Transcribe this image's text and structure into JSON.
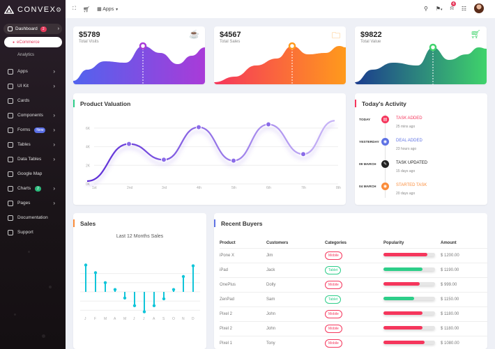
{
  "brand": {
    "name": "CONVEX",
    "settings_icon": "gear-icon"
  },
  "sidebar": {
    "dashboard": {
      "label": "Dashboard",
      "badge": "2"
    },
    "ecommerce": "eCommerce",
    "analytics": "Analytics",
    "items": [
      {
        "label": "Apps",
        "icon": "monitor-icon",
        "arrow": true
      },
      {
        "label": "UI Kit",
        "icon": "layers-icon",
        "arrow": true
      },
      {
        "label": "Cards",
        "icon": "card-icon",
        "arrow": false
      },
      {
        "label": "Components",
        "icon": "puzzle-icon",
        "arrow": true
      },
      {
        "label": "Forms",
        "icon": "form-icon",
        "arrow": true,
        "badge": "New"
      },
      {
        "label": "Tables",
        "icon": "table-icon",
        "arrow": true
      },
      {
        "label": "Data Tables",
        "icon": "datatable-icon",
        "arrow": true
      },
      {
        "label": "Google Map",
        "icon": "map-icon",
        "arrow": false
      },
      {
        "label": "Charts",
        "icon": "chart-icon",
        "arrow": true,
        "badge": "2"
      },
      {
        "label": "Pages",
        "icon": "pages-icon",
        "arrow": true
      },
      {
        "label": "Documentation",
        "icon": "doc-icon",
        "arrow": false
      },
      {
        "label": "Support",
        "icon": "support-icon",
        "arrow": false
      }
    ]
  },
  "topbar": {
    "apps_label": "Apps",
    "notif_count": "4"
  },
  "kpis": [
    {
      "value": "$5789",
      "label": "Total Visits",
      "icon": "cup-icon",
      "c1": "#a93bd8",
      "c2": "#5163ee"
    },
    {
      "value": "$4567",
      "label": "Total Sales",
      "icon": "folder-icon",
      "c1": "#ff9a1c",
      "c2": "#f5365c"
    },
    {
      "value": "$9822",
      "label": "Total Value",
      "icon": "cart-icon",
      "c1": "#3fd36b",
      "c2": "#1b3c8e"
    }
  ],
  "valuation": {
    "title": "Product Valuation"
  },
  "chart_data": {
    "type": "line",
    "title": "Product Valuation",
    "categories": [
      "1st",
      "2nd",
      "3rd",
      "4th",
      "5th",
      "6th",
      "7th",
      "8th"
    ],
    "yticks": [
      "0K",
      "2K",
      "4K",
      "6K"
    ],
    "ylim": [
      0,
      7.5
    ],
    "x": [
      0.8,
      2,
      3,
      4,
      5,
      6,
      7,
      7.9
    ],
    "values": [
      0.3,
      4.3,
      2.6,
      6.1,
      2.5,
      6.4,
      3.2,
      6.8
    ],
    "points": [
      [
        2,
        4.3
      ],
      [
        3,
        2.6
      ],
      [
        4,
        6.1
      ],
      [
        5,
        2.5
      ],
      [
        6,
        6.4
      ],
      [
        7,
        3.2
      ]
    ]
  },
  "activity": {
    "title": "Today's Activity",
    "items": [
      {
        "date": "TODAY",
        "title": "TASK ADDED",
        "time": "25 mins ago",
        "color": "#f5365c",
        "icon": "list-icon"
      },
      {
        "date": "YESTERDAY",
        "title": "DEAL ADDED",
        "time": "23 hours ago",
        "color": "#5e72e4",
        "icon": "eye-icon"
      },
      {
        "date": "09 MARCH",
        "title": "TASK UPDATED",
        "time": "15 days ago",
        "color": "#222",
        "icon": "edit-icon"
      },
      {
        "date": "04 MARCH",
        "title": "STARTED TASK",
        "time": "20 days ago",
        "color": "#fb8c3a",
        "icon": "eye-icon"
      }
    ]
  },
  "sales": {
    "title": "Sales",
    "subtitle": "Last 12 Months Sales",
    "months": [
      "J",
      "F",
      "M",
      "A",
      "M",
      "J",
      "J",
      "A",
      "S",
      "O",
      "N",
      "D"
    ],
    "values": [
      3.5,
      2.5,
      1.2,
      0.3,
      -0.8,
      -1.8,
      -2.6,
      -1.8,
      -0.9,
      0.3,
      2.0,
      3.4
    ]
  },
  "buyers": {
    "title": "Recent Buyers",
    "headers": [
      "Product",
      "Customers",
      "Categories",
      "Popularity",
      "Amount"
    ],
    "rows": [
      {
        "product": "iPone X",
        "customer": "Jim",
        "category": "Mobile",
        "pop": 0.85,
        "color": "#f5365c",
        "amount": "$ 1200.00"
      },
      {
        "product": "iPad",
        "customer": "Jack",
        "category": "Tablet",
        "pop": 0.75,
        "color": "#2dce89",
        "amount": "$ 1190.00"
      },
      {
        "product": "OnePlus",
        "customer": "Dolly",
        "category": "Mobile",
        "pop": 0.7,
        "color": "#f5365c",
        "amount": "$ 999.00"
      },
      {
        "product": "ZenPad",
        "customer": "Sam",
        "category": "Tablet",
        "pop": 0.6,
        "color": "#2dce89",
        "amount": "$ 1150.00"
      },
      {
        "product": "Pixel 2",
        "customer": "John",
        "category": "Mobile",
        "pop": 0.75,
        "color": "#f5365c",
        "amount": "$ 1180.00"
      },
      {
        "product": "Pixel 2",
        "customer": "John",
        "category": "Mobile",
        "pop": 0.75,
        "color": "#f5365c",
        "amount": "$ 1180.00"
      },
      {
        "product": "Pixel 1",
        "customer": "Tony",
        "category": "Mobile",
        "pop": 0.8,
        "color": "#f5365c",
        "amount": "$ 1080.00"
      }
    ]
  }
}
